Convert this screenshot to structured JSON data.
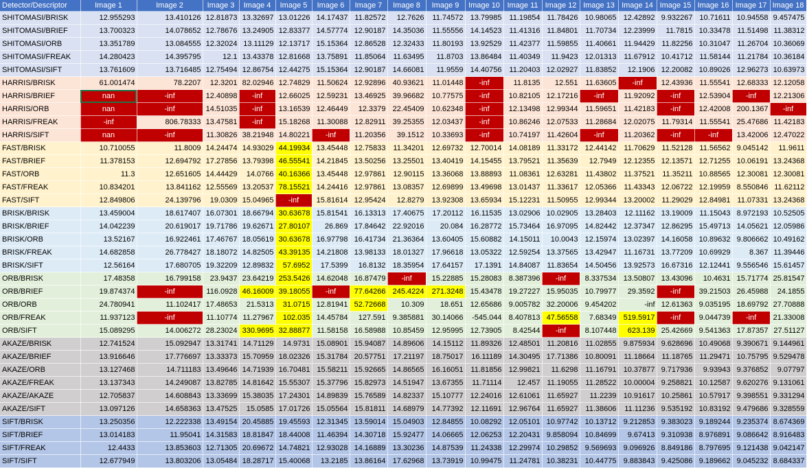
{
  "colors": {
    "header_bg": "#4472c4",
    "SHITOMASI": "#d9e1f2",
    "HARRIS": "#fce4d6",
    "FAST": "#fff2cc",
    "BRISK": "#ddebf7",
    "ORB": "#e2efda",
    "AKAZE": "#d0cece",
    "SIFT": "#b4c6e7",
    "highlight_red": "#c00000",
    "highlight_yellow": "#ffff00"
  },
  "header": [
    "Detector/Descriptor",
    "Image 1",
    "Image 2",
    "Image 3",
    "Image 4",
    "Image 5",
    "Image 6",
    "Image 7",
    "Image 8",
    "Image 9",
    "Image 10",
    "Image 11",
    "Image 12",
    "Image 13",
    "Image 14",
    "Image 15",
    "Image 16",
    "Image 17",
    "Image 18"
  ],
  "rows": [
    {
      "group": "SHITOMASI",
      "label": "SHITOMASI/BRISK",
      "cells": [
        "12.955293",
        "13.410126",
        "12.81873",
        "13.32697",
        "13.01226",
        "14.17437",
        "11.82572",
        "12.7626",
        "11.74572",
        "13.79985",
        "11.19854",
        "11.78426",
        "10.98065",
        "12.42892",
        "9.932267",
        "10.71611",
        "10.94558",
        "9.457475"
      ],
      "red": [],
      "yellow": []
    },
    {
      "group": "SHITOMASI",
      "label": "SHITOMASI/BRIEF",
      "cells": [
        "13.700323",
        "14.078652",
        "12.78676",
        "13.24905",
        "12.83377",
        "14.57774",
        "12.90187",
        "14.35036",
        "11.55556",
        "14.14523",
        "11.41316",
        "11.84801",
        "11.70734",
        "12.23999",
        "11.7815",
        "10.33478",
        "11.51498",
        "11.38312"
      ],
      "red": [],
      "yellow": []
    },
    {
      "group": "SHITOMASI",
      "label": "SHITOMASI/ORB",
      "cells": [
        "13.351789",
        "13.084555",
        "12.32024",
        "13.11129",
        "12.13717",
        "15.15364",
        "12.86528",
        "12.32433",
        "11.80193",
        "13.92529",
        "11.42377",
        "11.59855",
        "11.40661",
        "11.94429",
        "11.82256",
        "10.31047",
        "11.26704",
        "10.36069"
      ],
      "red": [],
      "yellow": []
    },
    {
      "group": "SHITOMASI",
      "label": "SHITOMASI/FREAK",
      "cells": [
        "14.280423",
        "14.395795",
        "12.1",
        "13.43378",
        "12.81668",
        "13.75891",
        "11.85064",
        "11.63495",
        "11.8703",
        "13.86484",
        "11.40349",
        "11.9423",
        "12.01313",
        "11.67912",
        "10.41712",
        "11.58144",
        "11.21784",
        "10.36184"
      ],
      "red": [],
      "yellow": []
    },
    {
      "group": "SHITOMASI",
      "label": "SHITOMASI/SIFT",
      "cells": [
        "13.761609",
        "13.716485",
        "12.75494",
        "12.86754",
        "12.44275",
        "15.15364",
        "12.90187",
        "14.66081",
        "11.9559",
        "14.40756",
        "11.20403",
        "12.02927",
        "11.83852",
        "12.1906",
        "12.20082",
        "10.89026",
        "12.96273",
        "10.63973"
      ],
      "red": [],
      "yellow": []
    },
    {
      "group": "HARRIS",
      "label": "HARRIS/BRISK",
      "cells": [
        "61.001474",
        "78.2207",
        "12.3201",
        "82.02946",
        "12.74829",
        "11.50624",
        "12.92896",
        "40.93621",
        "11.01448",
        "-inf",
        "11.8135",
        "12.551",
        "11.63605",
        "-inf",
        "12.43936",
        "11.55541",
        "12.68333",
        "12.12058"
      ],
      "red": [
        9,
        13
      ],
      "yellow": []
    },
    {
      "group": "HARRIS",
      "label": "HARRIS/BRIEF",
      "cells": [
        "nan",
        "-inf",
        "12.40898",
        "-inf",
        "12.66025",
        "12.59231",
        "13.46925",
        "39.96682",
        "10.77575",
        "-inf",
        "10.82105",
        "12.17216",
        "-inf",
        "11.92092",
        "-inf",
        "12.53904",
        "-inf",
        "12.21306"
      ],
      "red": [
        0,
        1,
        3,
        9,
        12,
        14,
        16
      ],
      "yellow": []
    },
    {
      "group": "HARRIS",
      "label": "HARRIS/ORB",
      "cells": [
        "nan",
        "-inf",
        "14.51035",
        "-inf",
        "13.16539",
        "12.46449",
        "12.3379",
        "22.45409",
        "10.62348",
        "-inf",
        "12.13498",
        "12.99344",
        "11.59651",
        "11.42183",
        "-inf",
        "12.42008",
        "200.1367",
        "-inf"
      ],
      "red": [
        0,
        1,
        3,
        9,
        14,
        17
      ],
      "yellow": []
    },
    {
      "group": "HARRIS",
      "label": "HARRIS/FREAK",
      "cells": [
        "-inf",
        "806.78333",
        "13.47581",
        "-inf",
        "15.18268",
        "11.30088",
        "12.82911",
        "39.25355",
        "12.03437",
        "-inf",
        "10.86246",
        "12.07533",
        "11.28684",
        "12.02075",
        "11.79314",
        "11.55541",
        "25.47686",
        "11.42183"
      ],
      "red": [
        0,
        3,
        9
      ],
      "yellow": []
    },
    {
      "group": "HARRIS",
      "label": "HARRIS/SIFT",
      "cells": [
        "nan",
        "-inf",
        "11.30826",
        "38.21948",
        "14.80221",
        "-inf",
        "11.20356",
        "39.1512",
        "10.33693",
        "-inf",
        "10.74197",
        "11.42604",
        "-inf",
        "11.20362",
        "-inf",
        "-inf",
        "13.42006",
        "12.47022"
      ],
      "red": [
        0,
        1,
        5,
        9,
        12,
        14,
        15
      ],
      "yellow": []
    },
    {
      "group": "FAST",
      "label": "FAST/BRISK",
      "cells": [
        "10.710055",
        "11.8009",
        "14.24474",
        "14.93029",
        "44.19934",
        "13.45448",
        "12.75833",
        "11.34201",
        "12.69732",
        "12.70014",
        "14.08189",
        "11.33172",
        "12.44142",
        "11.70629",
        "11.52128",
        "11.56562",
        "9.045142",
        "11.9611"
      ],
      "red": [],
      "yellow": [
        4
      ]
    },
    {
      "group": "FAST",
      "label": "FAST/BRIEF",
      "cells": [
        "11.378153",
        "12.694792",
        "17.27856",
        "13.79398",
        "46.55541",
        "14.21845",
        "13.50256",
        "13.25501",
        "13.40419",
        "14.15455",
        "13.79521",
        "11.35639",
        "12.7949",
        "12.12355",
        "12.13571",
        "12.71255",
        "10.06191",
        "13.24368"
      ],
      "red": [],
      "yellow": [
        4
      ]
    },
    {
      "group": "FAST",
      "label": "FAST/ORB",
      "cells": [
        "11.3",
        "12.651605",
        "14.44429",
        "14.0766",
        "40.16366",
        "13.45448",
        "12.97861",
        "12.90115",
        "13.36068",
        "13.88893",
        "11.08361",
        "12.63281",
        "11.43802",
        "11.37521",
        "11.35211",
        "10.88565",
        "12.30081",
        "12.30081"
      ],
      "red": [],
      "yellow": [
        4
      ]
    },
    {
      "group": "FAST",
      "label": "FAST/FREAK",
      "cells": [
        "10.834201",
        "13.841162",
        "12.55569",
        "13.20537",
        "78.15521",
        "14.24416",
        "12.97861",
        "13.08357",
        "12.69899",
        "13.49698",
        "13.01437",
        "11.33617",
        "12.05366",
        "11.43343",
        "12.06722",
        "12.19959",
        "8.550846",
        "11.62112"
      ],
      "red": [],
      "yellow": [
        4
      ]
    },
    {
      "group": "FAST",
      "label": "FAST/SIFT",
      "cells": [
        "12.849806",
        "24.139796",
        "19.0309",
        "15.04965",
        "-inf",
        "15.81614",
        "12.95424",
        "12.8279",
        "13.92308",
        "13.65934",
        "15.12231",
        "11.50955",
        "12.99344",
        "13.20002",
        "11.29029",
        "12.84981",
        "11.07331",
        "13.24368"
      ],
      "red": [
        4
      ],
      "yellow": []
    },
    {
      "group": "BRISK",
      "label": "BRISK/BRISK",
      "cells": [
        "13.459004",
        "18.617407",
        "16.07301",
        "18.66794",
        "30.63678",
        "15.81541",
        "16.13313",
        "17.40675",
        "17.20112",
        "16.11535",
        "13.02906",
        "10.02905",
        "13.28403",
        "12.11162",
        "13.19009",
        "11.15043",
        "8.972193",
        "10.52505"
      ],
      "red": [],
      "yellow": [
        4
      ]
    },
    {
      "group": "BRISK",
      "label": "BRISK/BRIEF",
      "cells": [
        "14.042239",
        "20.619017",
        "19.71786",
        "19.62671",
        "27.80107",
        "26.869",
        "17.84642",
        "22.92016",
        "20.084",
        "16.28772",
        "15.73464",
        "16.97095",
        "14.82442",
        "12.37347",
        "12.86295",
        "15.49713",
        "14.05621",
        "12.05986"
      ],
      "red": [],
      "yellow": [
        4
      ]
    },
    {
      "group": "BRISK",
      "label": "BRISK/ORB",
      "cells": [
        "13.52167",
        "16.922461",
        "17.46767",
        "18.05619",
        "30.63678",
        "16.97798",
        "16.41734",
        "21.36364",
        "13.60405",
        "15.60882",
        "14.15011",
        "10.0043",
        "12.15974",
        "13.02397",
        "14.16058",
        "10.89632",
        "9.806662",
        "10.49162"
      ],
      "red": [],
      "yellow": [
        4
      ]
    },
    {
      "group": "BRISK",
      "label": "BRISK/FREAK",
      "cells": [
        "14.682858",
        "26.778427",
        "18.18072",
        "14.82505",
        "43.39135",
        "14.21808",
        "13.98133",
        "18.01327",
        "17.96618",
        "13.05322",
        "12.59254",
        "13.37565",
        "13.42947",
        "11.16731",
        "13.77209",
        "10.69929",
        "8.367",
        "11.39446"
      ],
      "red": [],
      "yellow": [
        4
      ]
    },
    {
      "group": "BRISK",
      "label": "BRISK/SIFT",
      "cells": [
        "12.56164",
        "17.680705",
        "19.32209",
        "12.89832",
        "57.6952",
        "17.5399",
        "16.8132",
        "18.35954",
        "17.64157",
        "17.1391",
        "14.84087",
        "11.83654",
        "14.50456",
        "13.92573",
        "16.67316",
        "12.12441",
        "9.556546",
        "15.61457"
      ],
      "red": [],
      "yellow": [
        4
      ]
    },
    {
      "group": "ORB",
      "label": "ORB/BRISK",
      "cells": [
        "17.48358",
        "16.799158",
        "23.9437",
        "23.64219",
        "253.5426",
        "14.62048",
        "16.87479",
        "-inf",
        "15.22885",
        "15.28083",
        "8.387396",
        "-inf",
        "8.337534",
        "13.50807",
        "13.43096",
        "10.4631",
        "15.71774",
        "25.81547"
      ],
      "red": [
        7,
        11
      ],
      "yellow": [
        4
      ]
    },
    {
      "group": "ORB",
      "label": "ORB/BRIEF",
      "cells": [
        "19.874374",
        "-inf",
        "116.0928",
        "46.16009",
        "39.18055",
        "-inf",
        "77.64266",
        "245.4224",
        "271.3248",
        "15.43478",
        "19.27227",
        "15.95035",
        "10.79977",
        "29.3592",
        "-inf",
        "39.21503",
        "26.45988",
        "24.1855"
      ],
      "red": [
        1,
        5,
        14
      ],
      "yellow": [
        3,
        4,
        6,
        7,
        8
      ]
    },
    {
      "group": "ORB",
      "label": "ORB/ORB",
      "cells": [
        "24.780941",
        "11.102417",
        "17.48653",
        "21.5313",
        "31.0715",
        "12.81941",
        "52.72668",
        "10.309",
        "18.651",
        "12.65686",
        "9.005782",
        "32.20006",
        "9.454202",
        "-inf",
        "12.61363",
        "9.035195",
        "18.69792",
        "27.70888"
      ],
      "red": [],
      "yellow": [
        4,
        6
      ]
    },
    {
      "group": "ORB",
      "label": "ORB/FREAK",
      "cells": [
        "11.937123",
        "-inf",
        "11.10774",
        "11.27967",
        "102.035",
        "14.45784",
        "127.591",
        "9.385881",
        "30.14066",
        "-545.044",
        "8.407813",
        "47.56558",
        "7.68349",
        "519.5917",
        "-inf",
        "9.044739",
        "-inf",
        "21.33008"
      ],
      "red": [
        1,
        14,
        16
      ],
      "yellow": [
        4,
        11,
        13
      ]
    },
    {
      "group": "ORB",
      "label": "ORB/SIFT",
      "cells": [
        "15.089295",
        "14.006272",
        "28.23024",
        "330.9695",
        "32.88877",
        "11.58158",
        "16.58988",
        "10.85459",
        "12.95995",
        "12.73905",
        "8.42544",
        "-inf",
        "8.107448",
        "623.139",
        "25.42669",
        "9.541363",
        "17.87357",
        "27.51127"
      ],
      "red": [
        11
      ],
      "yellow": [
        3,
        4,
        13
      ]
    },
    {
      "group": "AKAZE",
      "label": "AKAZE/BRISK",
      "cells": [
        "12.741524",
        "15.092947",
        "13.31741",
        "14.71129",
        "14.9731",
        "15.08901",
        "15.94087",
        "14.89606",
        "14.15112",
        "11.89326",
        "12.48501",
        "11.20816",
        "11.02855",
        "9.875934",
        "9.628696",
        "10.49068",
        "9.390671",
        "9.144961"
      ],
      "red": [],
      "yellow": []
    },
    {
      "group": "AKAZE",
      "label": "AKAZE/BRIEF",
      "cells": [
        "13.916646",
        "17.776697",
        "13.33373",
        "15.70959",
        "18.02326",
        "15.31784",
        "20.57751",
        "17.21197",
        "18.75017",
        "16.11189",
        "14.30495",
        "17.71386",
        "10.80091",
        "11.18664",
        "11.18765",
        "11.29471",
        "10.75795",
        "9.529478"
      ],
      "red": [],
      "yellow": []
    },
    {
      "group": "AKAZE",
      "label": "AKAZE/ORB",
      "cells": [
        "13.127468",
        "14.711183",
        "13.49646",
        "14.71939",
        "16.70481",
        "15.58211",
        "15.92665",
        "14.86565",
        "16.16051",
        "11.81856",
        "12.99821",
        "11.6298",
        "11.16791",
        "10.37877",
        "9.717936",
        "9.93943",
        "9.376852",
        "9.07797"
      ],
      "red": [],
      "yellow": []
    },
    {
      "group": "AKAZE",
      "label": "AKAZE/FREAK",
      "cells": [
        "13.137343",
        "14.249087",
        "13.82785",
        "14.81642",
        "15.55307",
        "15.37796",
        "15.82973",
        "14.51947",
        "13.67355",
        "11.71114",
        "12.457",
        "11.19055",
        "11.28522",
        "10.00004",
        "9.258821",
        "10.12587",
        "9.620276",
        "9.131061"
      ],
      "red": [],
      "yellow": []
    },
    {
      "group": "AKAZE",
      "label": "AKAZE/AKAZE",
      "cells": [
        "12.705837",
        "14.608843",
        "13.33699",
        "15.38035",
        "17.24301",
        "14.89839",
        "15.76589",
        "14.82337",
        "15.10777",
        "12.24016",
        "12.61061",
        "11.65927",
        "11.2239",
        "10.91617",
        "10.25861",
        "10.57917",
        "9.398551",
        "9.331294"
      ],
      "red": [],
      "yellow": []
    },
    {
      "group": "AKAZE",
      "label": "AKAZE/SIFT",
      "cells": [
        "13.097126",
        "14.658363",
        "13.47525",
        "15.0585",
        "17.01726",
        "15.05564",
        "15.81811",
        "14.68979",
        "14.77392",
        "12.11691",
        "12.96764",
        "11.65927",
        "11.38606",
        "11.11236",
        "9.535192",
        "10.83192",
        "9.479686",
        "9.328559"
      ],
      "red": [],
      "yellow": []
    },
    {
      "group": "SIFT",
      "label": "SIFT/BRISK",
      "cells": [
        "13.250356",
        "12.222338",
        "13.49154",
        "20.45885",
        "19.45593",
        "12.31345",
        "13.59014",
        "15.04903",
        "12.84855",
        "10.08292",
        "12.05101",
        "10.97742",
        "10.13712",
        "9.212853",
        "9.383023",
        "9.189244",
        "9.235374",
        "8.674369"
      ],
      "red": [],
      "yellow": []
    },
    {
      "group": "SIFT",
      "label": "SIFT/BRIEF",
      "cells": [
        "13.014183",
        "11.95041",
        "14.31583",
        "18.81847",
        "18.44008",
        "11.46394",
        "14.30718",
        "15.92477",
        "14.06665",
        "12.06253",
        "12.20431",
        "9.858094",
        "10.84699",
        "9.67413",
        "9.310938",
        "8.976891",
        "9.086642",
        "8.916483"
      ],
      "red": [],
      "yellow": []
    },
    {
      "group": "SIFT",
      "label": "SIFT/FREAK",
      "cells": [
        "12.4433",
        "13.853603",
        "12.71305",
        "20.69672",
        "14.74821",
        "12.93028",
        "14.16889",
        "13.30236",
        "14.87539",
        "11.24338",
        "12.29974",
        "10.29852",
        "9.569693",
        "9.096926",
        "8.849186",
        "8.797695",
        "9.121438",
        "9.042147"
      ],
      "red": [],
      "yellow": []
    },
    {
      "group": "SIFT",
      "label": "SIFT/SIFT",
      "cells": [
        "12.677949",
        "13.803206",
        "13.05484",
        "18.28717",
        "15.40068",
        "13.2185",
        "13.86164",
        "17.62968",
        "13.73919",
        "10.99475",
        "11.24781",
        "10.38231",
        "10.44775",
        "9.883843",
        "9.425086",
        "9.189662",
        "9.045232",
        "8.684337"
      ],
      "red": [],
      "yellow": []
    }
  ],
  "selected_cell": {
    "row": 6,
    "col": 0
  }
}
